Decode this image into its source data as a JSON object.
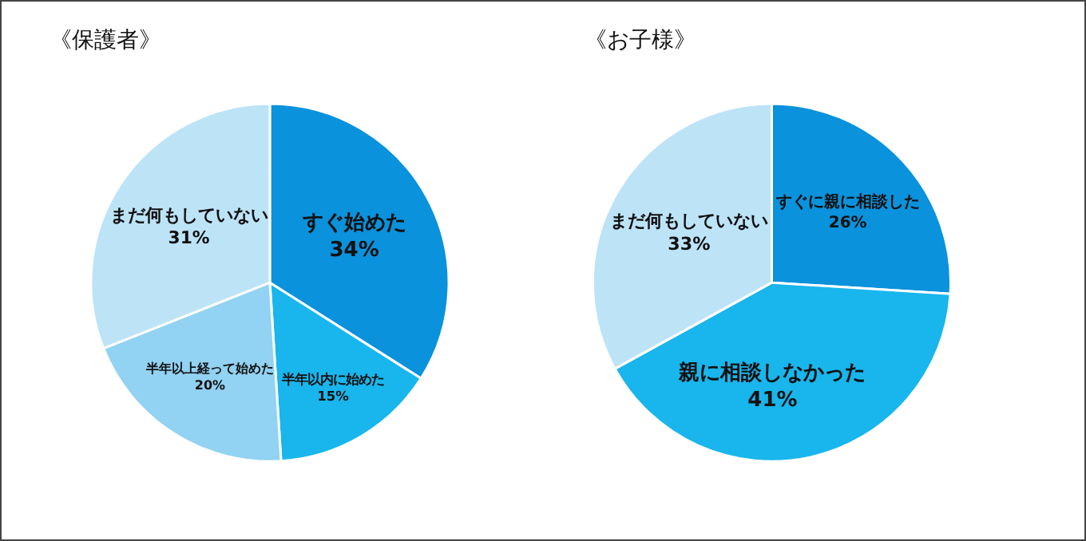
{
  "chart_data": [
    {
      "type": "pie",
      "title": "《保護者》",
      "categories": [
        "すぐ始めた",
        "半年以内に始めた",
        "半年以上経って始めた",
        "まだ何もしていない"
      ],
      "values": [
        34,
        15,
        20,
        31
      ],
      "value_labels": [
        "34%",
        "15%",
        "20%",
        "31%"
      ],
      "colors": [
        "#0a92dc",
        "#18b6ec",
        "#92d2f2",
        "#bde3f7"
      ]
    },
    {
      "type": "pie",
      "title": "《お子様》",
      "categories": [
        "すぐに親に相談した",
        "親に相談しなかった",
        "まだ何もしていない"
      ],
      "values": [
        26,
        41,
        33
      ],
      "value_labels": [
        "26%",
        "41%",
        "33%"
      ],
      "colors": [
        "#0a92dc",
        "#18b6ec",
        "#bde3f7"
      ]
    }
  ]
}
